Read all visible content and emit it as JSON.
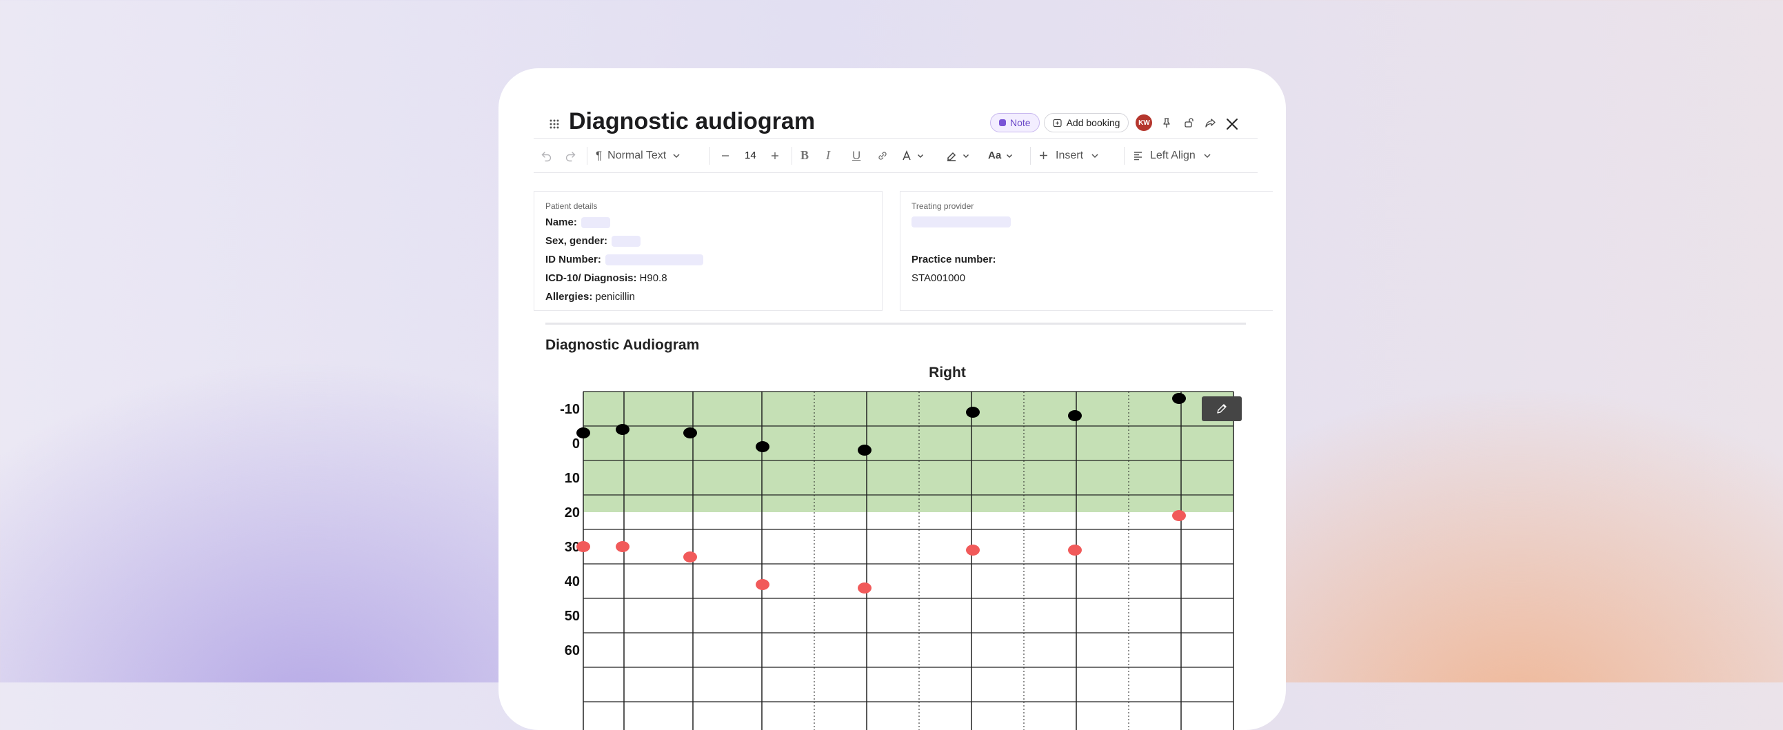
{
  "header": {
    "title": "Diagnostic audiogram",
    "note_badge": "Note",
    "add_booking": "Add booking",
    "avatar_initials": "KW"
  },
  "toolbar": {
    "paragraph_style": "Normal Text",
    "font_size": "14",
    "insert_label": "Insert",
    "align_label": "Left Align"
  },
  "patient": {
    "caption": "Patient details",
    "name_label": "Name:",
    "name_value": "",
    "sex_label": "Sex, gender:",
    "sex_value": "",
    "id_label": "ID Number:",
    "id_value": "",
    "diagnosis_label": "ICD-10/ Diagnosis:",
    "diagnosis_value": "H90.8",
    "allergies_label": "Allergies:",
    "allergies_value": "penicillin"
  },
  "provider": {
    "caption": "Treating provider",
    "name_value": "",
    "practice_label": "Practice number:",
    "practice_value": "STA001000"
  },
  "section_title": "Diagnostic Audiogram",
  "chart_data": {
    "type": "scatter",
    "title": "Right",
    "xlabel": "",
    "ylabel": "",
    "y_ticks": [
      "-10",
      "0",
      "10",
      "20",
      "30",
      "40",
      "50",
      "60"
    ],
    "ylim": [
      -15,
      65
    ],
    "y_inverted": true,
    "normal_band": [
      -15,
      20
    ],
    "colors": {
      "normal_band": "#c5e0b5",
      "series_black": "#000000",
      "series_red": "#f15a5a"
    },
    "x_positions": [
      0,
      1,
      2,
      3,
      4,
      5,
      6,
      7
    ],
    "series": [
      {
        "values": [
          -3,
          -4,
          -3,
          1,
          2,
          -9,
          -8,
          -13
        ]
      },
      {
        "values": [
          30,
          30,
          33,
          41,
          42,
          31,
          31,
          21
        ]
      }
    ]
  }
}
